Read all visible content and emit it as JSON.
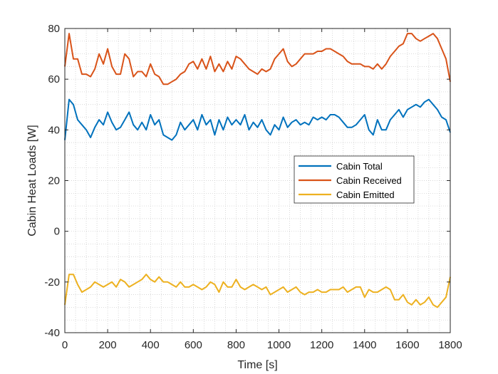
{
  "chart_data": {
    "type": "line",
    "title": "",
    "xlabel": "Time [s]",
    "ylabel": "Cabin Heat Loads [W]",
    "xlim": [
      0,
      1800
    ],
    "ylim": [
      -40,
      80
    ],
    "xticks": [
      0,
      200,
      400,
      600,
      800,
      1000,
      1200,
      1400,
      1600,
      1800
    ],
    "yticks": [
      -40,
      -20,
      0,
      20,
      40,
      60,
      80
    ],
    "xtick_labels": [
      "0",
      "200",
      "400",
      "600",
      "800",
      "1000",
      "1200",
      "1400",
      "1600",
      "1800"
    ],
    "ytick_labels": [
      "-40",
      "-20",
      "0",
      "20",
      "40",
      "60",
      "80"
    ],
    "grid": "minor dotted",
    "legend_position": "center-right",
    "x": [
      0,
      20,
      40,
      60,
      80,
      100,
      120,
      140,
      160,
      180,
      200,
      220,
      240,
      260,
      280,
      300,
      320,
      340,
      360,
      380,
      400,
      420,
      440,
      460,
      480,
      500,
      520,
      540,
      560,
      580,
      600,
      620,
      640,
      660,
      680,
      700,
      720,
      740,
      760,
      780,
      800,
      820,
      840,
      860,
      880,
      900,
      920,
      940,
      960,
      980,
      1000,
      1020,
      1040,
      1060,
      1080,
      1100,
      1120,
      1140,
      1160,
      1180,
      1200,
      1220,
      1240,
      1260,
      1280,
      1300,
      1320,
      1340,
      1360,
      1380,
      1400,
      1420,
      1440,
      1460,
      1480,
      1500,
      1520,
      1540,
      1560,
      1580,
      1600,
      1620,
      1640,
      1660,
      1680,
      1700,
      1720,
      1740,
      1760,
      1780,
      1800
    ],
    "series": [
      {
        "name": "Cabin Total",
        "color": "#0072BD",
        "values": [
          36,
          52,
          50,
          44,
          42,
          40,
          37,
          41,
          44,
          42,
          47,
          43,
          40,
          41,
          44,
          47,
          42,
          40,
          43,
          40,
          46,
          42,
          44,
          38,
          37,
          36,
          38,
          43,
          40,
          42,
          44,
          40,
          46,
          42,
          44,
          38,
          44,
          40,
          45,
          42,
          44,
          42,
          46,
          40,
          43,
          41,
          44,
          40,
          38,
          42,
          40,
          45,
          41,
          43,
          44,
          42,
          43,
          42,
          45,
          44,
          45,
          44,
          46,
          46,
          45,
          43,
          41,
          41,
          42,
          44,
          46,
          40,
          38,
          44,
          40,
          40,
          44,
          46,
          48,
          45,
          48,
          49,
          50,
          49,
          51,
          52,
          50,
          48,
          45,
          44,
          39
        ]
      },
      {
        "name": "Cabin Received",
        "color": "#D95319",
        "values": [
          65,
          78,
          68,
          68,
          62,
          62,
          61,
          64,
          70,
          66,
          72,
          65,
          62,
          62,
          70,
          68,
          61,
          63,
          63,
          61,
          66,
          62,
          61,
          58,
          58,
          59,
          60,
          62,
          63,
          66,
          67,
          64,
          68,
          64,
          69,
          63,
          66,
          63,
          67,
          64,
          69,
          68,
          66,
          64,
          63,
          62,
          64,
          63,
          64,
          68,
          70,
          72,
          67,
          65,
          66,
          68,
          70,
          70,
          70,
          71,
          71,
          72,
          72,
          71,
          70,
          69,
          67,
          66,
          66,
          66,
          65,
          65,
          64,
          66,
          64,
          66,
          69,
          71,
          73,
          74,
          78,
          78,
          76,
          75,
          76,
          77,
          78,
          76,
          72,
          68,
          59
        ]
      },
      {
        "name": "Cabin Emitted",
        "color": "#EDB120",
        "values": [
          -29,
          -17,
          -17,
          -21,
          -24,
          -23,
          -22,
          -20,
          -21,
          -22,
          -21,
          -20,
          -22,
          -19,
          -20,
          -22,
          -21,
          -20,
          -19,
          -17,
          -19,
          -20,
          -18,
          -20,
          -20,
          -21,
          -22,
          -20,
          -22,
          -22,
          -21,
          -22,
          -23,
          -22,
          -20,
          -21,
          -24,
          -20,
          -22,
          -22,
          -19,
          -22,
          -23,
          -22,
          -21,
          -22,
          -23,
          -22,
          -25,
          -24,
          -23,
          -22,
          -24,
          -23,
          -22,
          -24,
          -25,
          -24,
          -24,
          -23,
          -24,
          -24,
          -23,
          -23,
          -23,
          -22,
          -24,
          -23,
          -22,
          -22,
          -26,
          -23,
          -24,
          -24,
          -23,
          -22,
          -23,
          -27,
          -27,
          -25,
          -28,
          -29,
          -27,
          -29,
          -28,
          -26,
          -29,
          -30,
          -28,
          -26,
          -18
        ]
      }
    ]
  },
  "colors": {
    "axes": "#262626",
    "grid": "#c8c8c8",
    "background": "#ffffff"
  }
}
